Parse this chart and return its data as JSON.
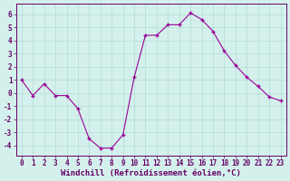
{
  "x": [
    0,
    1,
    2,
    3,
    4,
    5,
    6,
    7,
    8,
    9,
    10,
    11,
    12,
    13,
    14,
    15,
    16,
    17,
    18,
    19,
    20,
    21,
    22,
    23
  ],
  "y": [
    1.0,
    -0.2,
    0.7,
    -0.2,
    -0.2,
    -1.2,
    -3.5,
    -4.2,
    -4.2,
    -3.2,
    1.2,
    4.4,
    4.4,
    5.2,
    5.2,
    6.1,
    5.6,
    4.7,
    3.2,
    2.1,
    1.2,
    0.5,
    -0.3,
    -0.6
  ],
  "line_color": "#990099",
  "marker": "+",
  "marker_size": 3,
  "marker_lw": 1.0,
  "line_width": 0.8,
  "bg_color": "#d4f0ec",
  "grid_color": "#a8d8ce",
  "xlabel": "Windchill (Refroidissement éolien,°C)",
  "xlabel_fontsize": 6.5,
  "xlim": [
    -0.5,
    23.5
  ],
  "ylim": [
    -4.8,
    6.8
  ],
  "yticks": [
    -4,
    -3,
    -2,
    -1,
    0,
    1,
    2,
    3,
    4,
    5,
    6
  ],
  "xticks": [
    0,
    1,
    2,
    3,
    4,
    5,
    6,
    7,
    8,
    9,
    10,
    11,
    12,
    13,
    14,
    15,
    16,
    17,
    18,
    19,
    20,
    21,
    22,
    23
  ],
  "tick_fontsize": 5.5,
  "spine_color": "#660066",
  "label_color": "#660066"
}
